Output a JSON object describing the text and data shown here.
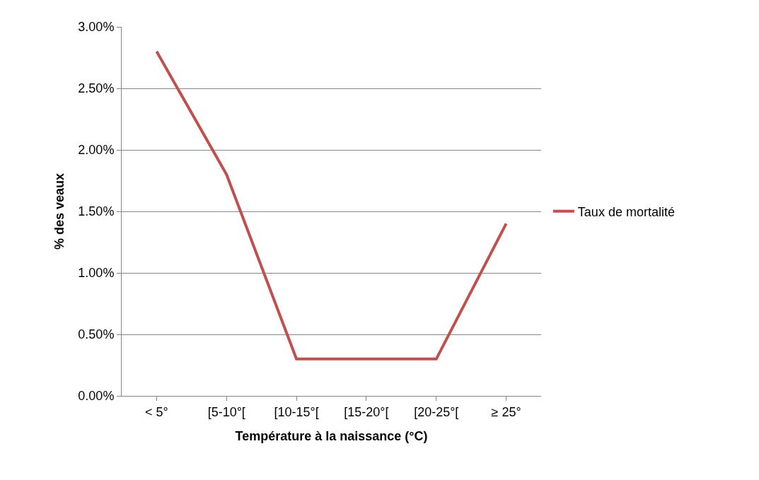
{
  "chart_data": {
    "type": "line",
    "xlabel": "Température à la naissance (°C)",
    "ylabel": "% des veaux",
    "categories": [
      "< 5°",
      "[5-10°[",
      "[10-15°[",
      "[15-20°[",
      "[20-25°[",
      "≥ 25°"
    ],
    "series": [
      {
        "name": "Taux de mortalité",
        "color": "#c0504d",
        "values": [
          2.8,
          1.8,
          0.3,
          0.3,
          0.3,
          1.4
        ]
      }
    ],
    "ylim": [
      0,
      3
    ],
    "yticks": [
      {
        "value": 0,
        "label": "0.00%"
      },
      {
        "value": 0.5,
        "label": "0.50%"
      },
      {
        "value": 1,
        "label": "1.00%"
      },
      {
        "value": 1.5,
        "label": "1.50%"
      },
      {
        "value": 2,
        "label": "2.00%"
      },
      {
        "value": 2.5,
        "label": "2.50%"
      },
      {
        "value": 3,
        "label": "3.00%"
      }
    ],
    "grid": "y",
    "legend": "right",
    "marker": "none",
    "line_style": "solid"
  }
}
